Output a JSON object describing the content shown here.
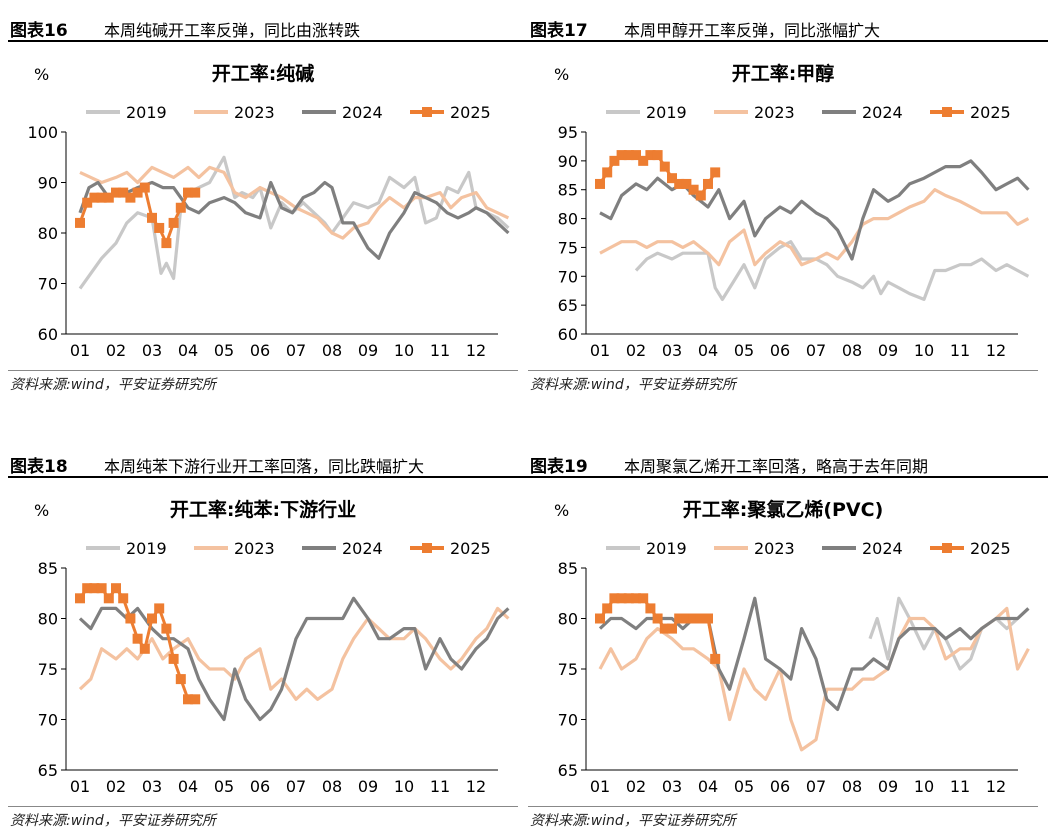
{
  "panels": [
    {
      "label": "图表16",
      "title": "本周纯碱开工率反弹，同比由涨转跌",
      "source": "资料来源:wind，平安证券研究所"
    },
    {
      "label": "图表17",
      "title": "本周甲醇开工率反弹，同比涨幅扩大",
      "source": "资料来源:wind，平安证券研究所"
    },
    {
      "label": "图表18",
      "title": "本周纯苯下游行业开工率回落，同比跌幅扩大",
      "source": "资料来源:wind，平安证券研究所"
    },
    {
      "label": "图表19",
      "title": "本周聚氯乙烯开工率回落，略高于去年同期",
      "source": "资料来源:wind，平安证券研究所"
    }
  ],
  "colors": {
    "s2019": "#c8c8c8",
    "s2023": "#f4c2a0",
    "s2024": "#7f7f7f",
    "s2025": "#ed7d31"
  },
  "chart_data": [
    {
      "type": "line",
      "title": "开工率:纯碱",
      "unit": "%",
      "ylim": [
        60,
        100
      ],
      "yticks": [
        60,
        70,
        80,
        90,
        100
      ],
      "xticks": [
        "01",
        "02",
        "03",
        "04",
        "05",
        "06",
        "07",
        "08",
        "09",
        "10",
        "11",
        "12"
      ],
      "legend": [
        "2019",
        "2023",
        "2024",
        "2025"
      ],
      "series": [
        {
          "name": "2019",
          "x": [
            1,
            1.3,
            1.6,
            2,
            2.3,
            2.6,
            3,
            3.25,
            3.4,
            3.6,
            3.8,
            4,
            4.3,
            4.6,
            5,
            5.3,
            5.5,
            5.8,
            6,
            6.3,
            6.6,
            6.9,
            7.2,
            7.5,
            7.8,
            8,
            8.3,
            8.6,
            9,
            9.3,
            9.6,
            10,
            10.3,
            10.6,
            10.9,
            11.2,
            11.5,
            11.8,
            12,
            12.3,
            12.6,
            12.9
          ],
          "y": [
            69,
            72,
            75,
            78,
            82,
            84,
            83,
            72,
            74,
            71,
            85,
            88,
            89,
            90,
            95,
            87,
            88,
            87,
            89,
            81,
            86,
            84,
            86,
            84,
            82,
            80,
            83,
            86,
            85,
            86,
            91,
            89,
            91,
            82,
            83,
            89,
            88,
            92,
            85,
            84,
            83,
            81
          ]
        },
        {
          "name": "2023",
          "x": [
            1,
            1.3,
            1.6,
            2,
            2.3,
            2.6,
            3,
            3.3,
            3.6,
            4,
            4.3,
            4.6,
            5,
            5.3,
            5.6,
            6,
            6.3,
            6.6,
            7,
            7.3,
            7.6,
            8,
            8.3,
            8.6,
            9,
            9.3,
            9.6,
            10,
            10.3,
            10.6,
            11,
            11.3,
            11.6,
            12,
            12.3,
            12.6,
            12.9
          ],
          "y": [
            92,
            91,
            90,
            91,
            92,
            90,
            93,
            92,
            91,
            93,
            91,
            93,
            92,
            88,
            87,
            89,
            88,
            87,
            85,
            84,
            83,
            80,
            79,
            81,
            82,
            85,
            87,
            85,
            87,
            87,
            88,
            85,
            87,
            88,
            85,
            84,
            83
          ]
        },
        {
          "name": "2024",
          "x": [
            1,
            1.25,
            1.5,
            1.8,
            2,
            2.3,
            2.6,
            3,
            3.3,
            3.6,
            4,
            4.3,
            4.6,
            5,
            5.3,
            5.6,
            6,
            6.3,
            6.6,
            6.9,
            7.2,
            7.5,
            7.8,
            8,
            8.3,
            8.6,
            9,
            9.3,
            9.6,
            10,
            10.3,
            10.6,
            10.9,
            11.2,
            11.5,
            11.8,
            12,
            12.3,
            12.6,
            12.9
          ],
          "y": [
            84,
            89,
            90,
            87,
            88,
            88,
            89,
            90,
            89,
            89,
            85,
            84,
            86,
            87,
            86,
            84,
            83,
            90,
            85,
            84,
            87,
            88,
            90,
            89,
            82,
            82,
            77,
            75,
            80,
            84,
            88,
            87,
            86,
            84,
            83,
            84,
            85,
            84,
            82,
            80
          ]
        },
        {
          "name": "2025",
          "x": [
            1,
            1.2,
            1.4,
            1.6,
            1.8,
            2,
            2.2,
            2.4,
            2.6,
            2.8,
            3,
            3.2,
            3.4,
            3.6,
            3.8,
            4,
            4.2
          ],
          "y": [
            82,
            86,
            87,
            87,
            87,
            88,
            88,
            87,
            88,
            89,
            83,
            81,
            78,
            82,
            85,
            88,
            88
          ]
        }
      ]
    },
    {
      "type": "line",
      "title": "开工率:甲醇",
      "unit": "%",
      "ylim": [
        60,
        95
      ],
      "yticks": [
        60,
        65,
        70,
        75,
        80,
        85,
        90,
        95
      ],
      "xticks": [
        "01",
        "02",
        "03",
        "04",
        "05",
        "06",
        "07",
        "08",
        "09",
        "10",
        "11",
        "12"
      ],
      "legend": [
        "2019",
        "2023",
        "2024",
        "2025"
      ],
      "series": [
        {
          "name": "2019",
          "x": [
            2,
            2.3,
            2.6,
            3,
            3.3,
            3.6,
            4,
            4.2,
            4.4,
            4.7,
            5,
            5.3,
            5.6,
            6,
            6.3,
            6.6,
            7,
            7.3,
            7.6,
            8,
            8.3,
            8.6,
            8.8,
            9,
            9.3,
            9.6,
            10,
            10.3,
            10.6,
            11,
            11.3,
            11.6,
            12,
            12.3,
            12.6,
            12.9
          ],
          "y": [
            71,
            73,
            74,
            73,
            74,
            74,
            74,
            68,
            66,
            69,
            72,
            68,
            73,
            75,
            76,
            73,
            73,
            72,
            70,
            69,
            68,
            70,
            67,
            69,
            68,
            67,
            66,
            71,
            71,
            72,
            72,
            73,
            71,
            72,
            71,
            70
          ]
        },
        {
          "name": "2023",
          "x": [
            1,
            1.3,
            1.6,
            2,
            2.3,
            2.6,
            3,
            3.3,
            3.6,
            4,
            4.3,
            4.6,
            5,
            5.3,
            5.6,
            6,
            6.3,
            6.6,
            7,
            7.3,
            7.6,
            8,
            8.3,
            8.6,
            9,
            9.3,
            9.6,
            10,
            10.3,
            10.6,
            11,
            11.3,
            11.6,
            12,
            12.3,
            12.6,
            12.9
          ],
          "y": [
            74,
            75,
            76,
            76,
            75,
            76,
            76,
            75,
            76,
            74,
            72,
            76,
            78,
            72,
            74,
            76,
            75,
            72,
            73,
            74,
            73,
            76,
            79,
            80,
            80,
            81,
            82,
            83,
            85,
            84,
            83,
            82,
            81,
            81,
            81,
            79,
            80
          ]
        },
        {
          "name": "2024",
          "x": [
            1,
            1.3,
            1.6,
            2,
            2.3,
            2.6,
            3,
            3.3,
            3.6,
            4,
            4.3,
            4.6,
            5,
            5.3,
            5.6,
            6,
            6.3,
            6.6,
            7,
            7.3,
            7.6,
            8,
            8.3,
            8.6,
            9,
            9.3,
            9.6,
            10,
            10.3,
            10.6,
            11,
            11.3,
            11.6,
            12,
            12.3,
            12.6,
            12.9
          ],
          "y": [
            81,
            80,
            84,
            86,
            85,
            87,
            85,
            86,
            84,
            82,
            85,
            80,
            83,
            77,
            80,
            82,
            81,
            83,
            81,
            80,
            78,
            73,
            80,
            85,
            83,
            84,
            86,
            87,
            88,
            89,
            89,
            90,
            88,
            85,
            86,
            87,
            85
          ]
        },
        {
          "name": "2025",
          "x": [
            1,
            1.2,
            1.4,
            1.6,
            1.8,
            2,
            2.2,
            2.4,
            2.6,
            2.8,
            3,
            3.2,
            3.4,
            3.6,
            3.8,
            4,
            4.2
          ],
          "y": [
            86,
            88,
            90,
            91,
            91,
            91,
            90,
            91,
            91,
            89,
            87,
            86,
            86,
            85,
            84,
            86,
            88
          ]
        }
      ]
    },
    {
      "type": "line",
      "title": "开工率:纯苯:下游行业",
      "unit": "%",
      "ylim": [
        65,
        85
      ],
      "yticks": [
        65,
        70,
        75,
        80,
        85
      ],
      "xticks": [
        "01",
        "02",
        "03",
        "04",
        "05",
        "06",
        "07",
        "08",
        "09",
        "10",
        "11",
        "12"
      ],
      "legend": [
        "2019",
        "2023",
        "2024",
        "2025"
      ],
      "series": [
        {
          "name": "2019",
          "x": [],
          "y": []
        },
        {
          "name": "2023",
          "x": [
            1,
            1.3,
            1.6,
            2,
            2.3,
            2.6,
            3,
            3.3,
            3.6,
            4,
            4.3,
            4.6,
            5,
            5.3,
            5.6,
            6,
            6.3,
            6.6,
            7,
            7.3,
            7.6,
            8,
            8.3,
            8.6,
            9,
            9.3,
            9.6,
            10,
            10.3,
            10.6,
            11,
            11.3,
            11.6,
            12,
            12.3,
            12.6,
            12.9
          ],
          "y": [
            73,
            74,
            77,
            76,
            77,
            76,
            78,
            76,
            77,
            78,
            76,
            75,
            75,
            74,
            76,
            77,
            73,
            74,
            72,
            73,
            72,
            73,
            76,
            78,
            80,
            79,
            78,
            78,
            79,
            78,
            76,
            75,
            76,
            78,
            79,
            81,
            80
          ]
        },
        {
          "name": "2024",
          "x": [
            1,
            1.3,
            1.6,
            2,
            2.3,
            2.6,
            3,
            3.3,
            3.6,
            4,
            4.3,
            4.6,
            5,
            5.3,
            5.6,
            6,
            6.3,
            6.6,
            7,
            7.3,
            7.6,
            8,
            8.3,
            8.6,
            9,
            9.3,
            9.6,
            10,
            10.3,
            10.6,
            11,
            11.3,
            11.6,
            12,
            12.3,
            12.6,
            12.9
          ],
          "y": [
            80,
            79,
            81,
            81,
            80,
            81,
            79,
            78,
            78,
            77,
            74,
            72,
            70,
            75,
            72,
            70,
            71,
            73,
            78,
            80,
            80,
            80,
            80,
            82,
            80,
            78,
            78,
            79,
            79,
            75,
            78,
            76,
            75,
            77,
            78,
            80,
            81
          ]
        },
        {
          "name": "2025",
          "x": [
            1,
            1.2,
            1.4,
            1.6,
            1.8,
            2,
            2.2,
            2.4,
            2.6,
            2.8,
            3,
            3.2,
            3.4,
            3.6,
            3.8,
            4,
            4.2
          ],
          "y": [
            82,
            83,
            83,
            83,
            82,
            83,
            82,
            80,
            78,
            77,
            80,
            81,
            79,
            76,
            74,
            72,
            72
          ]
        }
      ]
    },
    {
      "type": "line",
      "title": "开工率:聚氯乙烯(PVC)",
      "unit": "%",
      "ylim": [
        65,
        85
      ],
      "yticks": [
        65,
        70,
        75,
        80,
        85
      ],
      "xticks": [
        "01",
        "02",
        "03",
        "04",
        "05",
        "06",
        "07",
        "08",
        "09",
        "10",
        "11",
        "12"
      ],
      "legend": [
        "2019",
        "2023",
        "2024",
        "2025"
      ],
      "series": [
        {
          "name": "2019",
          "x": [
            8.5,
            8.7,
            9,
            9.3,
            9.6,
            10,
            10.3,
            10.6,
            11,
            11.3,
            11.6,
            12,
            12.3,
            12.6,
            12.9
          ],
          "y": [
            78,
            80,
            76,
            82,
            80,
            77,
            79,
            78,
            75,
            76,
            79,
            80,
            79,
            80,
            81
          ]
        },
        {
          "name": "2023",
          "x": [
            1,
            1.3,
            1.6,
            2,
            2.3,
            2.6,
            3,
            3.3,
            3.6,
            4,
            4.3,
            4.6,
            5,
            5.3,
            5.6,
            6,
            6.3,
            6.6,
            7,
            7.3,
            7.6,
            8,
            8.3,
            8.6,
            9,
            9.3,
            9.6,
            10,
            10.3,
            10.6,
            11,
            11.3,
            11.6,
            12,
            12.3,
            12.6,
            12.9
          ],
          "y": [
            75,
            77,
            75,
            76,
            78,
            79,
            78,
            77,
            77,
            76,
            75,
            70,
            75,
            73,
            72,
            75,
            70,
            67,
            68,
            73,
            73,
            73,
            74,
            74,
            75,
            78,
            80,
            80,
            79,
            76,
            77,
            77,
            79,
            80,
            81,
            75,
            77
          ]
        },
        {
          "name": "2024",
          "x": [
            1,
            1.3,
            1.6,
            2,
            2.3,
            2.6,
            3,
            3.3,
            3.6,
            4,
            4.3,
            4.6,
            5,
            5.3,
            5.6,
            6,
            6.3,
            6.6,
            7,
            7.3,
            7.6,
            8,
            8.3,
            8.6,
            9,
            9.3,
            9.6,
            10,
            10.3,
            10.6,
            11,
            11.3,
            11.6,
            12,
            12.3,
            12.6,
            12.9
          ],
          "y": [
            79,
            80,
            80,
            79,
            80,
            80,
            80,
            79,
            80,
            80,
            75,
            73,
            78,
            82,
            76,
            75,
            74,
            79,
            76,
            72,
            71,
            75,
            75,
            76,
            75,
            78,
            79,
            79,
            79,
            78,
            79,
            78,
            79,
            80,
            80,
            80,
            81
          ]
        },
        {
          "name": "2025",
          "x": [
            1,
            1.2,
            1.4,
            1.6,
            1.8,
            2,
            2.2,
            2.4,
            2.6,
            2.8,
            3,
            3.2,
            3.4,
            3.6,
            3.8,
            4,
            4.2
          ],
          "y": [
            80,
            81,
            82,
            82,
            82,
            82,
            82,
            81,
            80,
            79,
            79,
            80,
            80,
            80,
            80,
            80,
            76
          ]
        }
      ]
    }
  ]
}
